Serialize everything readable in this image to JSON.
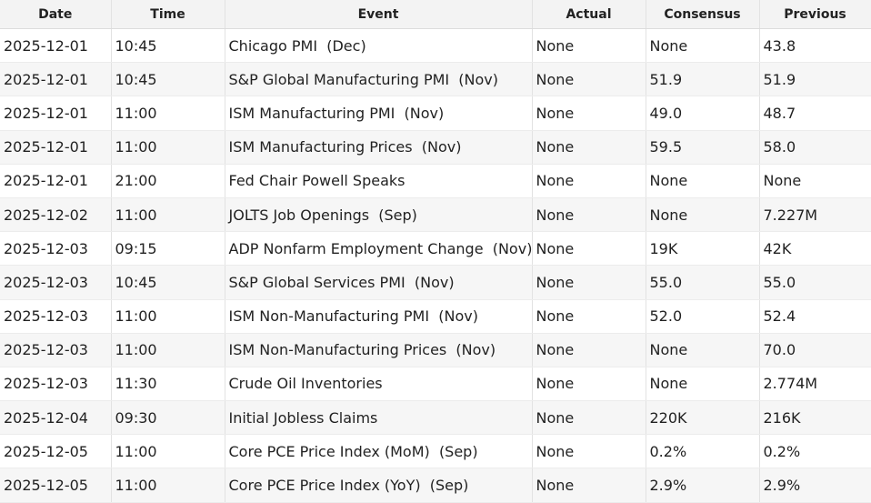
{
  "table": {
    "headers": [
      "Date",
      "Time",
      "Event",
      "Actual",
      "Consensus",
      "Previous"
    ],
    "rows": [
      [
        "2025-12-01",
        "10:45",
        "Chicago PMI  (Dec)",
        "None",
        "None",
        "43.8"
      ],
      [
        "2025-12-01",
        "10:45",
        "S&P Global Manufacturing PMI  (Nov)",
        "None",
        "51.9",
        "51.9"
      ],
      [
        "2025-12-01",
        "11:00",
        "ISM Manufacturing PMI  (Nov)",
        "None",
        "49.0",
        "48.7"
      ],
      [
        "2025-12-01",
        "11:00",
        "ISM Manufacturing Prices  (Nov)",
        "None",
        "59.5",
        "58.0"
      ],
      [
        "2025-12-01",
        "21:00",
        "Fed Chair Powell Speaks",
        "None",
        "None",
        "None"
      ],
      [
        "2025-12-02",
        "11:00",
        "JOLTS Job Openings  (Sep)",
        "None",
        "None",
        "7.227M"
      ],
      [
        "2025-12-03",
        "09:15",
        "ADP Nonfarm Employment Change  (Nov)",
        "None",
        "19K",
        "42K"
      ],
      [
        "2025-12-03",
        "10:45",
        "S&P Global Services PMI  (Nov)",
        "None",
        "55.0",
        "55.0"
      ],
      [
        "2025-12-03",
        "11:00",
        "ISM Non-Manufacturing PMI  (Nov)",
        "None",
        "52.0",
        "52.4"
      ],
      [
        "2025-12-03",
        "11:00",
        "ISM Non-Manufacturing Prices  (Nov)",
        "None",
        "None",
        "70.0"
      ],
      [
        "2025-12-03",
        "11:30",
        "Crude Oil Inventories",
        "None",
        "None",
        "2.774M"
      ],
      [
        "2025-12-04",
        "09:30",
        "Initial Jobless Claims",
        "None",
        "220K",
        "216K"
      ],
      [
        "2025-12-05",
        "11:00",
        "Core PCE Price Index (MoM)  (Sep)",
        "None",
        "0.2%",
        "0.2%"
      ],
      [
        "2025-12-05",
        "11:00",
        "Core PCE Price Index (YoY)  (Sep)",
        "None",
        "2.9%",
        "2.9%"
      ]
    ]
  }
}
